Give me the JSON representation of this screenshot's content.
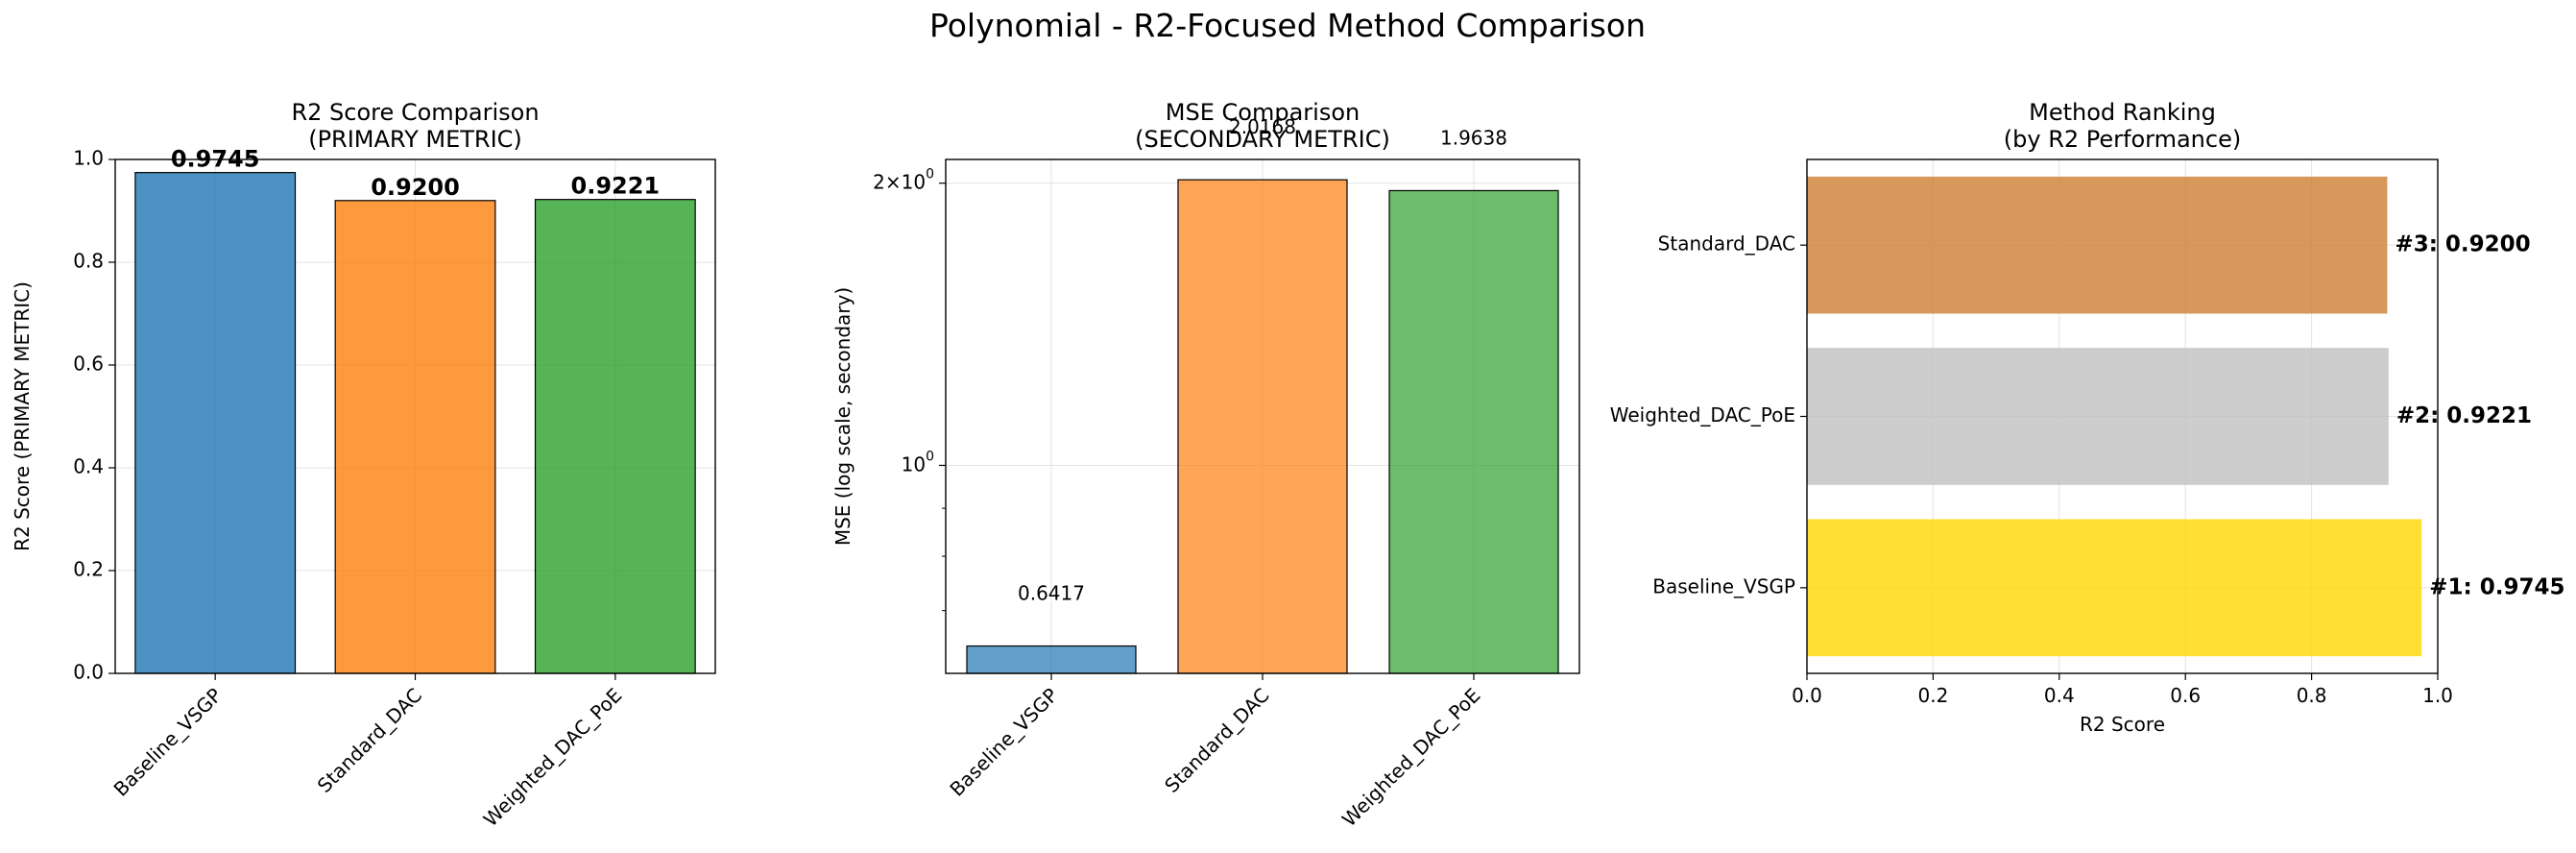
{
  "figure_title": "Polynomial - R2-Focused Method Comparison",
  "chart_data": [
    {
      "type": "bar",
      "title": "R2 Score Comparison\n(PRIMARY METRIC)",
      "xlabel": "",
      "ylabel": "R2 Score (PRIMARY METRIC)",
      "categories": [
        "Baseline_VSGP",
        "Standard_DAC",
        "Weighted_DAC_PoE"
      ],
      "values": [
        0.9745,
        0.92,
        0.9221
      ],
      "value_labels": [
        "0.9745",
        "0.9200",
        "0.9221"
      ],
      "colors": [
        "#1f77b4",
        "#ff7f0e",
        "#2ca02c"
      ],
      "ylim": [
        0,
        1.0
      ],
      "yticks": [
        0.0,
        0.2,
        0.4,
        0.6,
        0.8,
        1.0
      ],
      "ytick_labels": [
        "0.0",
        "0.2",
        "0.4",
        "0.6",
        "0.8",
        "1.0"
      ],
      "grid": true
    },
    {
      "type": "bar",
      "title": "MSE Comparison\n(SECONDARY METRIC)",
      "xlabel": "",
      "ylabel": "MSE (log scale, secondary)",
      "yscale": "log",
      "categories": [
        "Baseline_VSGP",
        "Standard_DAC",
        "Weighted_DAC_PoE"
      ],
      "values": [
        0.6417,
        2.0168,
        1.9638
      ],
      "value_labels": [
        "0.6417",
        "2.0168",
        "1.9638"
      ],
      "colors": [
        "#1f77b4",
        "#ff7f0e",
        "#2ca02c"
      ],
      "ylim": [
        0.6,
        2.12
      ],
      "yticks": [
        1.0,
        2.0
      ],
      "ytick_labels": [
        "10^0",
        "2×10^0"
      ],
      "grid": true
    },
    {
      "type": "bar",
      "orientation": "horizontal",
      "title": "Method Ranking\n(by R2 Performance)",
      "xlabel": "R2 Score",
      "ylabel": "",
      "categories": [
        "Baseline_VSGP",
        "Weighted_DAC_PoE",
        "Standard_DAC"
      ],
      "values": [
        0.9745,
        0.9221,
        0.92
      ],
      "value_labels": [
        "#1: 0.9745",
        "#2: 0.9221",
        "#3: 0.9200"
      ],
      "colors": [
        "#ffd700",
        "#c0c0c0",
        "#cd7f32"
      ],
      "xlim": [
        0,
        1.0
      ],
      "xticks": [
        0.0,
        0.2,
        0.4,
        0.6,
        0.8,
        1.0
      ],
      "xtick_labels": [
        "0.0",
        "0.2",
        "0.4",
        "0.6",
        "0.8",
        "1.0"
      ],
      "grid": true
    }
  ]
}
